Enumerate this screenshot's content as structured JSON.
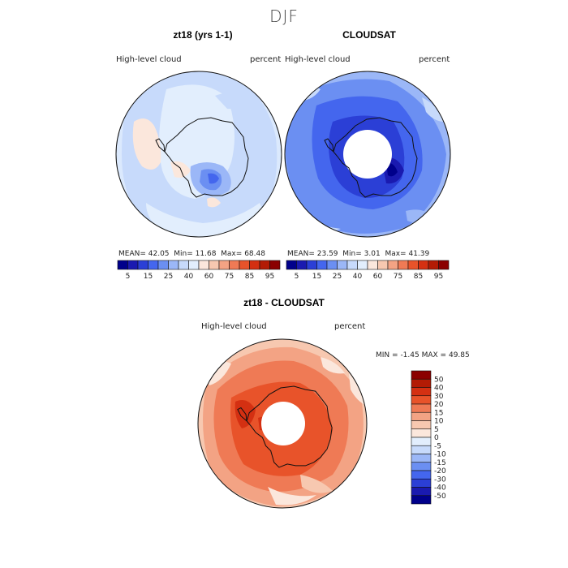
{
  "main_title": "DJF",
  "panels": [
    {
      "title": "zt18 (yrs 1-1)",
      "variable": "High-level cloud",
      "units": "percent",
      "stats": {
        "mean_label": "MEAN=",
        "mean": "42.05",
        "min_label": "Min=",
        "min": "11.68",
        "max_label": "Max=",
        "max": "68.48"
      }
    },
    {
      "title": "CLOUDSAT",
      "variable": "High-level cloud",
      "units": "percent",
      "stats": {
        "mean_label": "MEAN=",
        "mean": "23.59",
        "min_label": "Min=",
        "min": "3.01",
        "max_label": "Max=",
        "max": "41.39"
      }
    },
    {
      "title": "zt18 - CLOUDSAT",
      "variable": "High-level cloud",
      "units": "percent",
      "stats": {
        "min_label": "MIN =",
        "min": "-1.45",
        "max_label": "MAX =",
        "max": "49.85"
      }
    }
  ],
  "chart_data": [
    {
      "type": "heatmap",
      "title": "zt18 (yrs 1-1)",
      "projection": "south-polar-stereographic",
      "colorbar_orientation": "horizontal",
      "colorbar_ticks": [
        "5",
        "15",
        "25",
        "40",
        "60",
        "75",
        "85",
        "95"
      ],
      "colorbar_colors": [
        "#00008b",
        "#1a1ab0",
        "#2b3fd6",
        "#4466ee",
        "#6b8ff2",
        "#9bb7f7",
        "#c7dafb",
        "#e2eefd",
        "#fbe7dc",
        "#f7c8b0",
        "#f3a384",
        "#ef7a55",
        "#e8532a",
        "#d43012",
        "#b31b05",
        "#8b0000"
      ],
      "mean": 42.05,
      "min": 11.68,
      "max": 68.48
    },
    {
      "type": "heatmap",
      "title": "CLOUDSAT",
      "projection": "south-polar-stereographic",
      "colorbar_orientation": "horizontal",
      "colorbar_ticks": [
        "5",
        "15",
        "25",
        "40",
        "60",
        "75",
        "85",
        "95"
      ],
      "colorbar_colors": [
        "#00008b",
        "#1a1ab0",
        "#2b3fd6",
        "#4466ee",
        "#6b8ff2",
        "#9bb7f7",
        "#c7dafb",
        "#e2eefd",
        "#fbe7dc",
        "#f7c8b0",
        "#f3a384",
        "#ef7a55",
        "#e8532a",
        "#d43012",
        "#b31b05",
        "#8b0000"
      ],
      "mean": 23.59,
      "min": 3.01,
      "max": 41.39
    },
    {
      "type": "heatmap",
      "title": "zt18 - CLOUDSAT",
      "projection": "south-polar-stereographic",
      "colorbar_orientation": "vertical",
      "colorbar_ticks": [
        "50",
        "40",
        "30",
        "20",
        "15",
        "10",
        "5",
        "0",
        "-5",
        "-10",
        "-15",
        "-20",
        "-30",
        "-40",
        "-50"
      ],
      "colorbar_colors": [
        "#8b0000",
        "#b31b05",
        "#d43012",
        "#e8532a",
        "#ef7a55",
        "#f3a384",
        "#f7c8b0",
        "#fbe7dc",
        "#e2eefd",
        "#c7dafb",
        "#9bb7f7",
        "#6b8ff2",
        "#4466ee",
        "#2b3fd6",
        "#1a1ab0",
        "#00008b"
      ],
      "min": -1.45,
      "max": 49.85
    }
  ]
}
